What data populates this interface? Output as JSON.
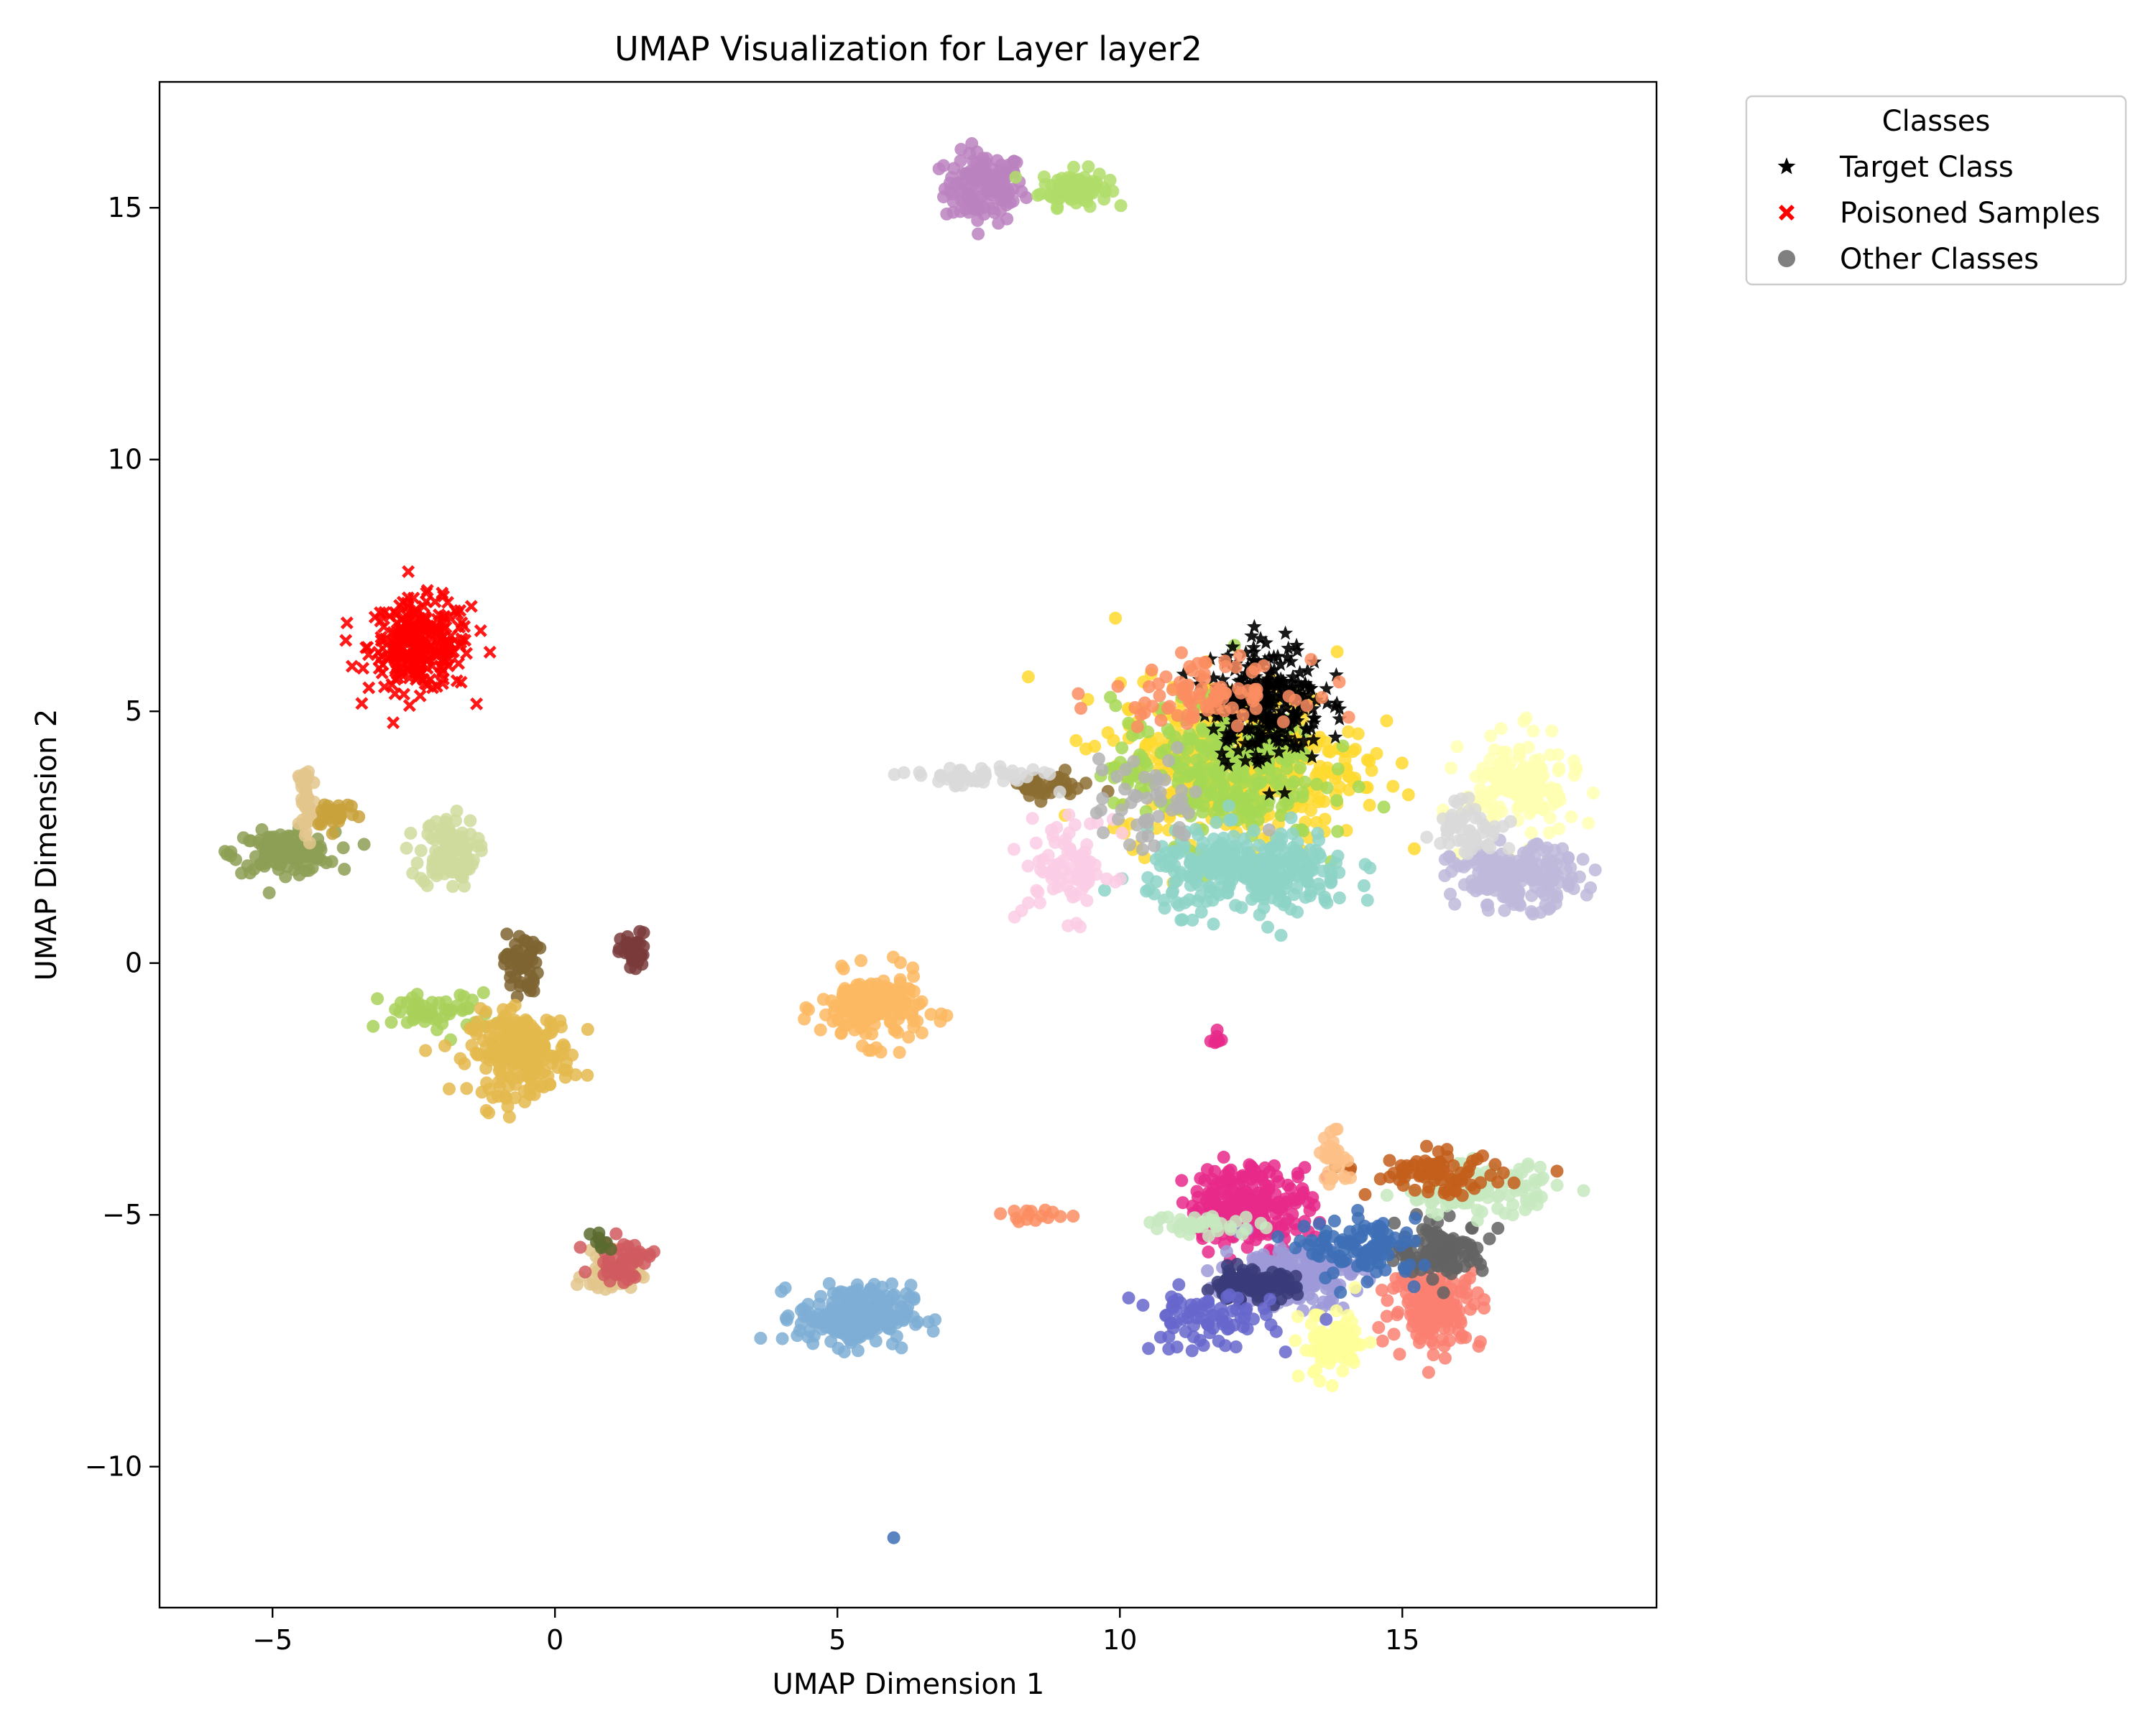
{
  "chart_data": {
    "type": "scatter",
    "title": "UMAP Visualization for Layer layer2",
    "xlabel": "UMAP Dimension 1",
    "ylabel": "UMAP Dimension 2",
    "xlim": [
      -7,
      19.5
    ],
    "ylim": [
      -12.8,
      17.5
    ],
    "xticks": [
      -5,
      0,
      5,
      10,
      15
    ],
    "yticks": [
      -10,
      -5,
      0,
      5,
      10,
      15
    ],
    "xtick_labels": [
      "−5",
      "0",
      "5",
      "10",
      "15"
    ],
    "ytick_labels": [
      "−10",
      "−5",
      "0",
      "5",
      "10",
      "15"
    ],
    "grid": false,
    "legend": {
      "title": "Classes",
      "placement": "outside-top-right",
      "entries": [
        {
          "label": "Target Class",
          "marker": "star",
          "color": "#000000"
        },
        {
          "label": "Poisoned Samples",
          "marker": "x",
          "color": "#ff0000"
        },
        {
          "label": "Other Classes",
          "marker": "circle",
          "color": "#808080"
        }
      ]
    },
    "clusters": [
      {
        "center": [
          7.6,
          15.4
        ],
        "spread": [
          0.35,
          0.35
        ],
        "n": 130,
        "color": "#bb82c0"
      },
      {
        "center": [
          9.2,
          15.4
        ],
        "spread": [
          0.3,
          0.18
        ],
        "n": 90,
        "color": "#b0dd6a"
      },
      {
        "center": [
          -2.4,
          6.3
        ],
        "spread": [
          0.45,
          0.45
        ],
        "n": 260,
        "color": "#ff0000",
        "marker": "x"
      },
      {
        "center": [
          -4.8,
          2.2
        ],
        "spread": [
          0.45,
          0.2
        ],
        "n": 120,
        "color": "#8d9f55"
      },
      {
        "center": [
          -4.4,
          3.2
        ],
        "spread": [
          0.08,
          0.45
        ],
        "n": 40,
        "color": "#e3c58c"
      },
      {
        "center": [
          -3.9,
          3.0
        ],
        "spread": [
          0.2,
          0.15
        ],
        "n": 30,
        "color": "#c9a23c"
      },
      {
        "center": [
          -1.9,
          2.2
        ],
        "spread": [
          0.25,
          0.35
        ],
        "n": 110,
        "color": "#cfdb9c"
      },
      {
        "center": [
          -0.6,
          0.0
        ],
        "spread": [
          0.15,
          0.3
        ],
        "n": 50,
        "color": "#7e6430"
      },
      {
        "center": [
          1.4,
          0.2
        ],
        "spread": [
          0.12,
          0.2
        ],
        "n": 40,
        "color": "#7a3b3b"
      },
      {
        "center": [
          -2.1,
          -1.0
        ],
        "spread": [
          0.5,
          0.2
        ],
        "n": 60,
        "color": "#a9d15a"
      },
      {
        "center": [
          -0.6,
          -1.8
        ],
        "spread": [
          0.45,
          0.4
        ],
        "n": 230,
        "color": "#e4b84c"
      },
      {
        "center": [
          5.6,
          -0.9
        ],
        "spread": [
          0.45,
          0.35
        ],
        "n": 170,
        "color": "#fbb862"
      },
      {
        "center": [
          1.0,
          -6.2
        ],
        "spread": [
          0.25,
          0.2
        ],
        "n": 50,
        "color": "#e3c58c"
      },
      {
        "center": [
          1.2,
          -5.9
        ],
        "spread": [
          0.25,
          0.2
        ],
        "n": 50,
        "color": "#d05a5f"
      },
      {
        "center": [
          0.8,
          -5.5
        ],
        "spread": [
          0.1,
          0.1
        ],
        "n": 8,
        "color": "#5b6b2f"
      },
      {
        "center": [
          5.3,
          -7.0
        ],
        "spread": [
          0.5,
          0.3
        ],
        "n": 230,
        "color": "#7eaed5"
      },
      {
        "center": [
          11.7,
          -1.5
        ],
        "spread": [
          0.05,
          0.08
        ],
        "n": 8,
        "color": "#e7298a"
      },
      {
        "center": [
          12.1,
          4.0
        ],
        "spread": [
          1.1,
          0.8
        ],
        "n": 450,
        "color": "#ffd92f"
      },
      {
        "center": [
          11.7,
          3.8
        ],
        "spread": [
          0.9,
          0.7
        ],
        "n": 280,
        "color": "#a6d854"
      },
      {
        "center": [
          12.6,
          5.2
        ],
        "spread": [
          0.5,
          0.6
        ],
        "n": 260,
        "color": "#000000",
        "marker": "star"
      },
      {
        "center": [
          12.3,
          1.8
        ],
        "spread": [
          0.9,
          0.4
        ],
        "n": 320,
        "color": "#8dd3c7"
      },
      {
        "center": [
          11.5,
          5.4
        ],
        "spread": [
          0.8,
          0.3
        ],
        "n": 90,
        "color": "#fc8d62"
      },
      {
        "center": [
          9.1,
          1.9
        ],
        "spread": [
          0.4,
          0.5
        ],
        "n": 80,
        "color": "#fccde5"
      },
      {
        "center": [
          8.7,
          3.5
        ],
        "spread": [
          0.4,
          0.12
        ],
        "n": 40,
        "color": "#8c6d31"
      },
      {
        "center": [
          7.4,
          3.7
        ],
        "spread": [
          0.6,
          0.1
        ],
        "n": 50,
        "color": "#d9d9d9"
      },
      {
        "center": [
          10.5,
          3.1
        ],
        "spread": [
          0.5,
          0.5
        ],
        "n": 50,
        "color": "#b3b3b3"
      },
      {
        "center": [
          17.1,
          3.5
        ],
        "spread": [
          0.5,
          0.5
        ],
        "n": 150,
        "color": "#ffffb3"
      },
      {
        "center": [
          17.0,
          1.7
        ],
        "spread": [
          0.55,
          0.3
        ],
        "n": 200,
        "color": "#bebada"
      },
      {
        "center": [
          16.2,
          2.7
        ],
        "spread": [
          0.3,
          0.3
        ],
        "n": 50,
        "color": "#d9d9d9"
      },
      {
        "center": [
          12.3,
          -4.8
        ],
        "spread": [
          0.55,
          0.4
        ],
        "n": 230,
        "color": "#e7298a"
      },
      {
        "center": [
          13.0,
          -6.2
        ],
        "spread": [
          0.6,
          0.3
        ],
        "n": 200,
        "color": "#9e9ad8"
      },
      {
        "center": [
          12.3,
          -6.4
        ],
        "spread": [
          0.4,
          0.15
        ],
        "n": 100,
        "color": "#393b79"
      },
      {
        "center": [
          15.6,
          -6.8
        ],
        "spread": [
          0.4,
          0.4
        ],
        "n": 160,
        "color": "#fa8072"
      },
      {
        "center": [
          15.7,
          -5.7
        ],
        "spread": [
          0.4,
          0.25
        ],
        "n": 120,
        "color": "#636363"
      },
      {
        "center": [
          14.3,
          -5.7
        ],
        "spread": [
          0.5,
          0.3
        ],
        "n": 100,
        "color": "#3d6fb6"
      },
      {
        "center": [
          16.3,
          -4.5
        ],
        "spread": [
          0.7,
          0.25
        ],
        "n": 120,
        "color": "#c7e9c0"
      },
      {
        "center": [
          15.6,
          -4.2
        ],
        "spread": [
          0.6,
          0.2
        ],
        "n": 80,
        "color": "#c35e1b"
      },
      {
        "center": [
          13.8,
          -7.6
        ],
        "spread": [
          0.3,
          0.35
        ],
        "n": 80,
        "color": "#ffff99"
      },
      {
        "center": [
          11.5,
          -7.1
        ],
        "spread": [
          0.6,
          0.3
        ],
        "n": 80,
        "color": "#6666cc"
      },
      {
        "center": [
          13.8,
          -3.9
        ],
        "spread": [
          0.15,
          0.25
        ],
        "n": 30,
        "color": "#fdc086"
      },
      {
        "center": [
          11.5,
          -5.2
        ],
        "spread": [
          0.5,
          0.1
        ],
        "n": 40,
        "color": "#c7e9c0"
      },
      {
        "center": [
          8.5,
          -5.0
        ],
        "spread": [
          0.3,
          0.08
        ],
        "n": 15,
        "color": "#fc8d62"
      },
      {
        "center": [
          6.0,
          -11.4
        ],
        "spread": [
          0.02,
          0.02
        ],
        "n": 1,
        "color": "#3d6fb6"
      }
    ]
  }
}
